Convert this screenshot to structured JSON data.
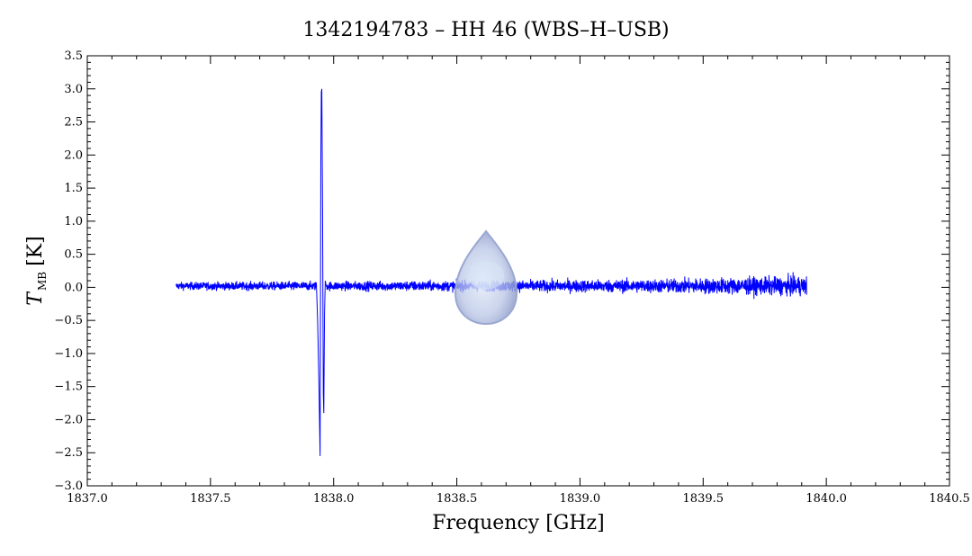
{
  "chart_data": {
    "type": "line",
    "title": "1342194783 – HH 46 (WBS–H–USB)",
    "xlabel": "Frequency [GHz]",
    "ylabel_main": "T",
    "ylabel_sub": "MB",
    "ylabel_unit": "[K]",
    "xlim": [
      1837.0,
      1840.5
    ],
    "ylim": [
      -3.0,
      3.5
    ],
    "x_ticks": [
      1837.0,
      1837.5,
      1838.0,
      1838.5,
      1839.0,
      1839.5,
      1840.0,
      1840.5
    ],
    "x_tick_labels": [
      "1837.0",
      "1837.5",
      "1838.0",
      "1838.5",
      "1839.0",
      "1839.5",
      "1840.0",
      "1840.5"
    ],
    "y_ticks": [
      -3.0,
      -2.5,
      -2.0,
      -1.5,
      -1.0,
      -0.5,
      0.0,
      0.5,
      1.0,
      1.5,
      2.0,
      2.5,
      3.0,
      3.5
    ],
    "y_tick_labels": [
      "−3.0",
      "−2.5",
      "−2.0",
      "−1.5",
      "−1.0",
      "−0.5",
      "0.0",
      "0.5",
      "1.0",
      "1.5",
      "2.0",
      "2.5",
      "3.0",
      "3.5"
    ],
    "grid": false,
    "series": [
      {
        "color": "#0000ff",
        "x_range": [
          1837.36,
          1839.92
        ],
        "baseline": 0.02,
        "noise_amplitude": [
          0.1,
          0.14,
          0.18,
          0.26
        ],
        "noise_amplitude_at": [
          1837.36,
          1838.5,
          1839.3,
          1839.92
        ],
        "feature": {
          "x": [
            1837.93,
            1837.935,
            1837.94,
            1837.945,
            1837.948,
            1837.95,
            1837.952,
            1837.955,
            1837.958,
            1837.96,
            1837.963,
            1837.966,
            1837.97
          ],
          "y": [
            0.05,
            -0.5,
            -1.4,
            -2.55,
            1.9,
            2.95,
            3.0,
            1.2,
            -1.6,
            -1.9,
            -0.4,
            0.1,
            0.02
          ]
        }
      }
    ],
    "colors": {
      "series": "#0000ff",
      "axes": "#000000",
      "watermark": "#8fa0cc"
    }
  }
}
